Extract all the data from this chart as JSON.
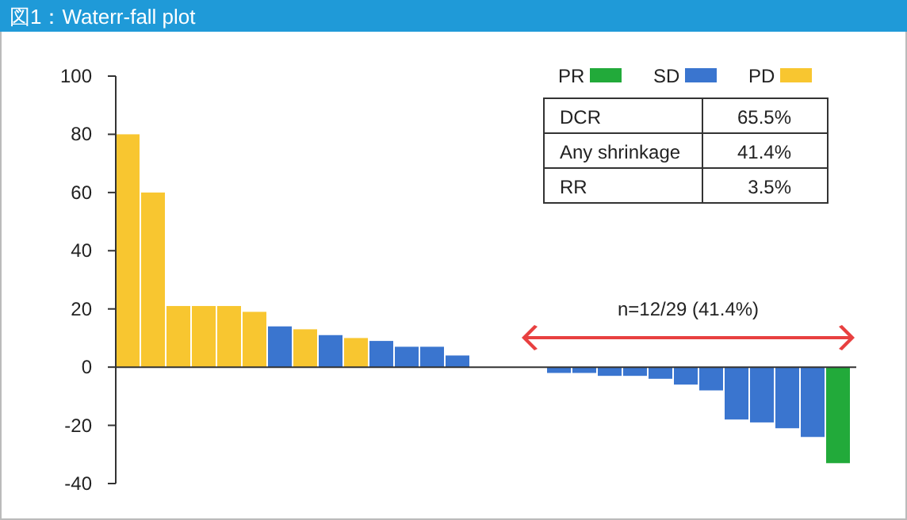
{
  "chart_data": {
    "type": "bar",
    "title": "図1：Waterr-fall plot",
    "categories": [
      null,
      null,
      null,
      null,
      null,
      null,
      null,
      null,
      null,
      null,
      null,
      null,
      null,
      null,
      null,
      null,
      null,
      null,
      null,
      null,
      null,
      null,
      null,
      null,
      null,
      null,
      null,
      null,
      null
    ],
    "series": [
      {
        "name": "PR",
        "color": "#22aa3a",
        "values": [
          null,
          null,
          null,
          null,
          null,
          null,
          null,
          null,
          null,
          null,
          null,
          null,
          null,
          null,
          null,
          null,
          null,
          null,
          null,
          null,
          null,
          null,
          null,
          null,
          null,
          null,
          null,
          null,
          -33
        ]
      },
      {
        "name": "SD",
        "color": "#3a75cf",
        "values": [
          null,
          null,
          null,
          null,
          null,
          null,
          14,
          null,
          11,
          null,
          9,
          7,
          7,
          4,
          0,
          0,
          0,
          -2,
          -2,
          -3,
          -3,
          -4,
          -6,
          -8,
          -18,
          -19,
          -21,
          -24,
          null
        ]
      },
      {
        "name": "PD",
        "color": "#f8c630",
        "values": [
          80,
          60,
          21,
          21,
          21,
          19,
          null,
          13,
          null,
          10,
          null,
          null,
          null,
          null,
          null,
          null,
          null,
          null,
          null,
          null,
          null,
          null,
          null,
          null,
          null,
          null,
          null,
          null,
          null
        ]
      }
    ],
    "ylim": [
      -40,
      100
    ],
    "yticks": [
      -40,
      -20,
      0,
      20,
      40,
      60,
      80,
      100
    ],
    "grid": false,
    "legend": "top right",
    "ref_lines": [
      {
        "axis": "y",
        "value": 0,
        "color": "#333333"
      }
    ],
    "annotations": [
      "n=12/29 (41.4%)",
      "DCR",
      "65.5%",
      "Any shrinkage",
      "41.4%",
      "RR",
      "3.5%"
    ]
  }
}
